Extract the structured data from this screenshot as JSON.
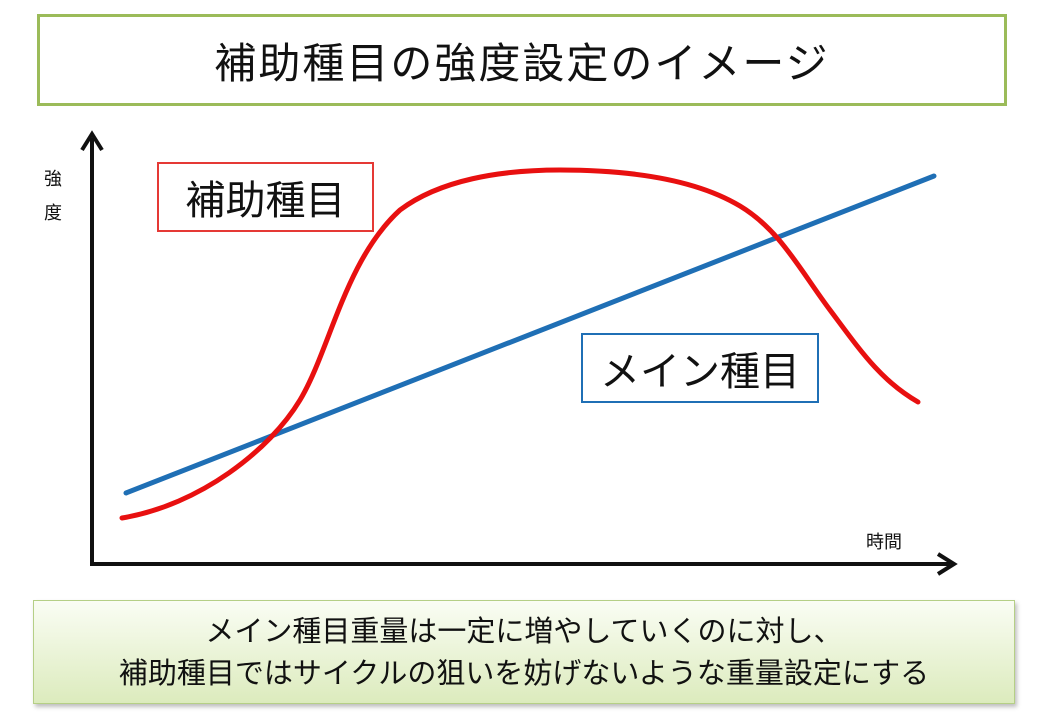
{
  "title": "補助種目の強度設定のイメージ",
  "axes": {
    "ylabel_line1": "強",
    "ylabel_line2": "度",
    "xlabel": "時間"
  },
  "labels": {
    "accessory": "補助種目",
    "main": "メイン種目"
  },
  "colors": {
    "accessory_curve": "#e81010",
    "main_line": "#1f6fb5",
    "title_border": "#9bbb59",
    "note_background": "#dcebbd"
  },
  "note": {
    "line1": "メイン種目重量は一定に増やしていくのに対し、",
    "line2": "補助種目ではサイクルの狙いを妨げないような重量設定にする"
  }
}
